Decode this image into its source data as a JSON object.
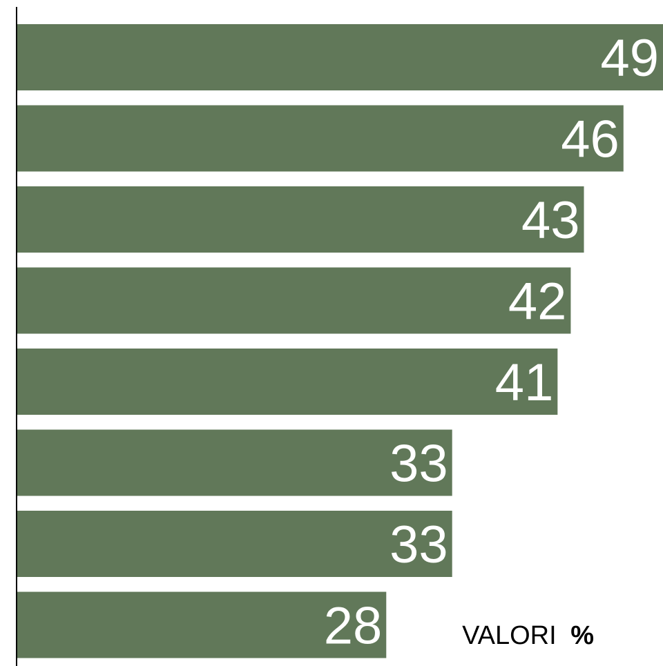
{
  "chart_data": {
    "type": "bar",
    "orientation": "horizontal",
    "values": [
      49,
      46,
      43,
      42,
      41,
      33,
      33,
      28
    ],
    "data_labels": [
      "49",
      "46",
      "43",
      "42",
      "41",
      "33",
      "33",
      "28"
    ],
    "xlim": [
      0,
      49
    ],
    "unit_label": {
      "prefix": "VALORI",
      "unit": "%"
    },
    "grid": false,
    "legend": "none",
    "colors": {
      "bar": "#617859",
      "label": "#ffffff",
      "axis": "#000000"
    }
  }
}
